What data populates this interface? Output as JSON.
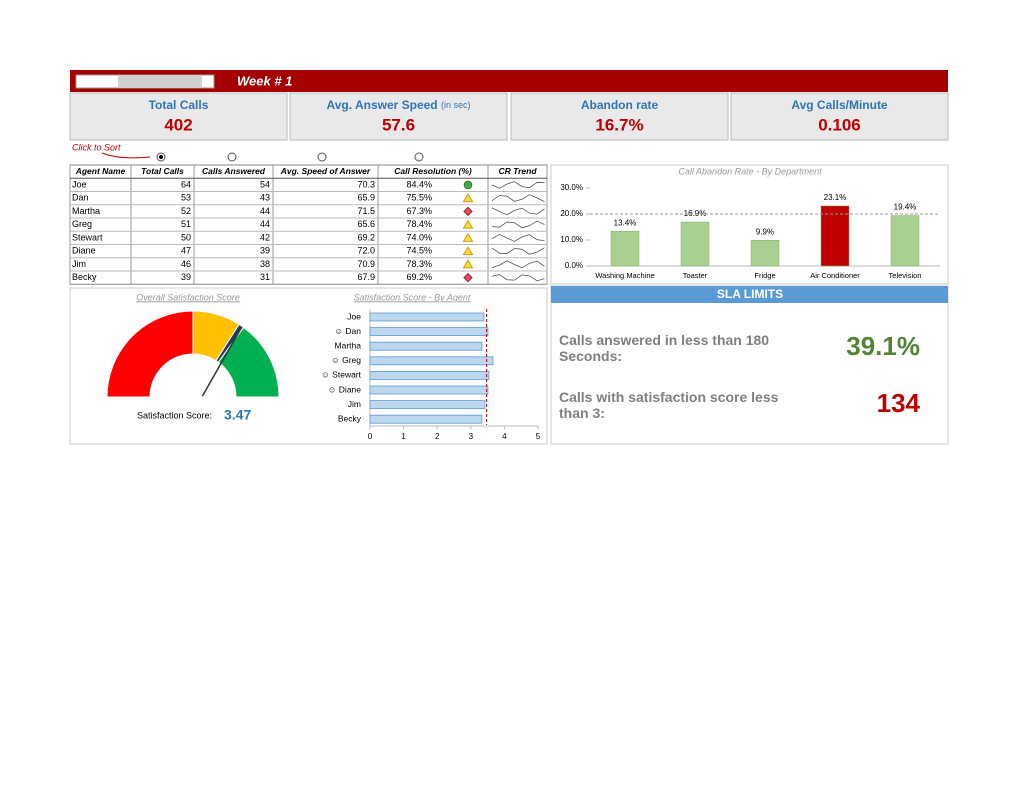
{
  "header": {
    "title": "Week # 1"
  },
  "kpis": [
    {
      "label": "Total Calls",
      "value": "402"
    },
    {
      "label": "Avg. Answer Speed",
      "note": "(in sec)",
      "value": "57.6"
    },
    {
      "label": "Abandon rate",
      "value": "16.7%"
    },
    {
      "label": "Avg Calls/Minute",
      "value": "0.106"
    }
  ],
  "sort_hint": "Click to Sort",
  "table": {
    "columns": [
      "Agent Name",
      "Total Calls",
      "Calls Answered",
      "Avg. Speed of Answer",
      "Call Resolution (%)",
      "CR Trend"
    ],
    "rows": [
      {
        "cells": [
          "Joe",
          "64",
          "54",
          "70.3",
          "84.4%"
        ],
        "status": "green"
      },
      {
        "cells": [
          "Dan",
          "53",
          "43",
          "65.9",
          "75.5%"
        ],
        "status": "yellow"
      },
      {
        "cells": [
          "Martha",
          "52",
          "44",
          "71.5",
          "67.3%"
        ],
        "status": "red"
      },
      {
        "cells": [
          "Greg",
          "51",
          "44",
          "65.6",
          "78.4%"
        ],
        "status": "yellow"
      },
      {
        "cells": [
          "Stewart",
          "50",
          "42",
          "69.2",
          "74.0%"
        ],
        "status": "yellow"
      },
      {
        "cells": [
          "Diane",
          "47",
          "39",
          "72.0",
          "74.5%"
        ],
        "status": "yellow"
      },
      {
        "cells": [
          "Jim",
          "46",
          "38",
          "70.9",
          "78.3%"
        ],
        "status": "yellow"
      },
      {
        "cells": [
          "Becky",
          "39",
          "31",
          "67.9",
          "69.2%"
        ],
        "status": "red"
      }
    ]
  },
  "sla": {
    "title": "SLA LIMITS",
    "items": [
      {
        "label": "Calls answered in less than 180 Seconds:",
        "value": "39.1%",
        "color": "#548235"
      },
      {
        "label": "Calls with satisfaction score less than 3:",
        "value": "134",
        "color": "#c00000"
      }
    ]
  },
  "chart_data": [
    {
      "type": "bar",
      "title": "Call Abandon Rate - By Department",
      "categories": [
        "Washing Machine",
        "Toaster",
        "Fridge",
        "Air Conditioner",
        "Television"
      ],
      "values": [
        13.4,
        16.9,
        9.9,
        23.1,
        19.4
      ],
      "value_labels": [
        "13.4%",
        "16.9%",
        "9.9%",
        "23.1%",
        "19.4%"
      ],
      "colors": [
        "#a9d08e",
        "#a9d08e",
        "#a9d08e",
        "#c00000",
        "#a9d08e"
      ],
      "ylim": [
        0,
        30
      ],
      "yticks": [
        {
          "value": 0,
          "label": "0.0%"
        },
        {
          "value": 10,
          "label": "10.0%"
        },
        {
          "value": 20,
          "label": "20.0%"
        },
        {
          "value": 30,
          "label": "30.0%"
        }
      ],
      "reference_line": 20
    },
    {
      "type": "gauge",
      "title": "Overall Satisfaction Score",
      "label": "Satisfaction Score:",
      "value": 3.47,
      "range": [
        0,
        5
      ],
      "bands": [
        {
          "from": 0,
          "to": 2.5,
          "color": "#ff0000"
        },
        {
          "from": 2.5,
          "to": 3.4,
          "color": "#ffc000"
        },
        {
          "from": 3.4,
          "to": 3.5,
          "color": "#1f3864"
        },
        {
          "from": 3.5,
          "to": 5,
          "color": "#00b050"
        }
      ]
    },
    {
      "type": "hbar",
      "title": "Satisfaction Score - By Agent",
      "categories": [
        "Joe",
        "☺ Dan",
        "Martha",
        "☺ Greg",
        "☺ Stewart",
        "☺ Diane",
        "Jim",
        "Becky"
      ],
      "values": [
        3.39,
        3.51,
        3.33,
        3.66,
        3.54,
        3.51,
        3.42,
        3.33
      ],
      "color": "#bdd7ee",
      "xlim": [
        0,
        5
      ],
      "xticks": [
        0,
        1,
        2,
        3,
        4,
        5
      ],
      "reference_line": 3.47
    }
  ]
}
